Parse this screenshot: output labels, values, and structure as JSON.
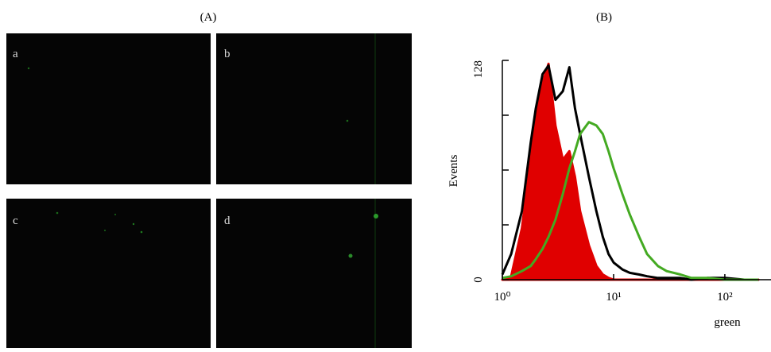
{
  "panel_a": {
    "title": "(A)",
    "images": [
      {
        "label": "a"
      },
      {
        "label": "b"
      },
      {
        "label": "c"
      },
      {
        "label": "d"
      }
    ]
  },
  "chart_data": {
    "type": "histogram",
    "title": "(B)",
    "x_label": "green",
    "y_label": "Events",
    "xscale": "log",
    "xlim": [
      1,
      260
    ],
    "xticks": [
      {
        "value": 1,
        "label": "10⁰"
      },
      {
        "value": 10,
        "label": "10¹"
      },
      {
        "value": 100,
        "label": "10²"
      }
    ],
    "ylim": [
      0,
      128
    ],
    "yticks": [
      0,
      128
    ],
    "yminorticks": [
      32,
      64,
      96
    ],
    "x": [
      1,
      1.2,
      1.5,
      1.8,
      2,
      2.3,
      2.6,
      3,
      3.5,
      4,
      4.5,
      5,
      6,
      7,
      8,
      9,
      10,
      12,
      14,
      17,
      20,
      25,
      30,
      40,
      50,
      70,
      100,
      150,
      200
    ],
    "series": [
      {
        "color": "#e00000",
        "filled": true,
        "values": [
          0,
          2,
          30,
          70,
          95,
          115,
          126,
          90,
          70,
          75,
          60,
          40,
          20,
          8,
          3,
          1,
          0,
          0,
          0,
          0,
          0,
          0,
          0,
          0,
          0,
          0,
          0,
          0,
          0
        ]
      },
      {
        "color": "#000000",
        "filled": false,
        "values": [
          3,
          15,
          40,
          80,
          100,
          120,
          125,
          105,
          110,
          124,
          100,
          85,
          60,
          40,
          25,
          15,
          10,
          6,
          4,
          3,
          2,
          1,
          1,
          1,
          0,
          1,
          1,
          0,
          0
        ]
      },
      {
        "color": "#44aa22",
        "filled": false,
        "values": [
          1,
          2,
          5,
          8,
          12,
          18,
          25,
          35,
          50,
          65,
          75,
          85,
          92,
          90,
          85,
          75,
          65,
          50,
          38,
          25,
          15,
          8,
          5,
          3,
          1,
          1,
          0,
          0,
          0
        ]
      }
    ]
  }
}
